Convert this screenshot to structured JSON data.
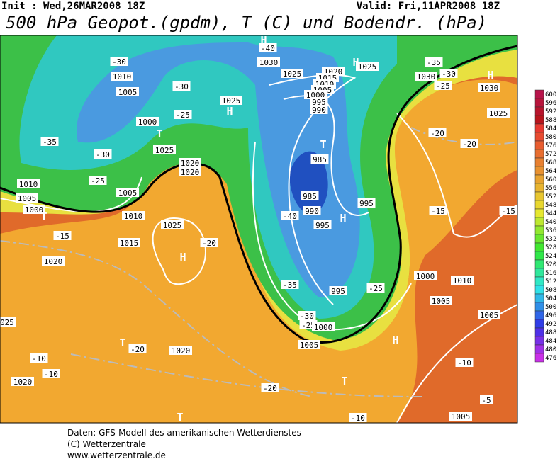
{
  "header": {
    "init": "Init : Wed,26MAR2008 18Z",
    "valid": "Valid: Fri,11APR2008 18Z",
    "title": "500 hPa Geopot.(gpdm), T (C) und Bodendr. (hPa)"
  },
  "colorbar": {
    "labels": [
      "600",
      "596",
      "592",
      "588",
      "584",
      "580",
      "576",
      "572",
      "568",
      "564",
      "560",
      "556",
      "552",
      "548",
      "544",
      "540",
      "536",
      "532",
      "528",
      "524",
      "520",
      "516",
      "512",
      "508",
      "504",
      "500",
      "496",
      "492",
      "488",
      "484",
      "480",
      "476"
    ]
  },
  "map_labels": [
    "1010",
    "1005",
    "-30",
    "-35",
    "-30",
    "-25",
    "1005",
    "1010",
    "1005",
    "1000",
    "T",
    "-15",
    "1015",
    "1020",
    "1010",
    "T",
    "1000",
    "-25",
    "-30",
    "1020",
    "1025",
    "1020",
    "H",
    "1025",
    "H",
    "-40",
    "1030",
    "1025",
    "1020",
    "1015",
    "1010",
    "1005",
    "1000",
    "995",
    "990",
    "H",
    "1025",
    "T",
    "985",
    "985",
    "990",
    "-40",
    "995",
    "H",
    "995",
    "-35",
    "-30",
    "-25",
    "1000",
    "995",
    "-25",
    "1005",
    "H",
    "T",
    "-20",
    "-10",
    "T",
    "1025",
    "H",
    "-20",
    "T",
    "-20",
    "1020",
    "-10",
    "-10",
    "1020",
    "025",
    "1000",
    "1010",
    "1005",
    "1005",
    "-10",
    "-5",
    "1005",
    "-15",
    "-20",
    "-20",
    "1025",
    "H",
    "1030",
    "-25",
    "-30",
    "-35",
    "1030",
    "-15"
  ],
  "footer": [
    "Daten: GFS-Modell des amerikanischen Wetterdienstes",
    "(C) Wetterzentrale",
    "www.wetterzentrale.de"
  ]
}
